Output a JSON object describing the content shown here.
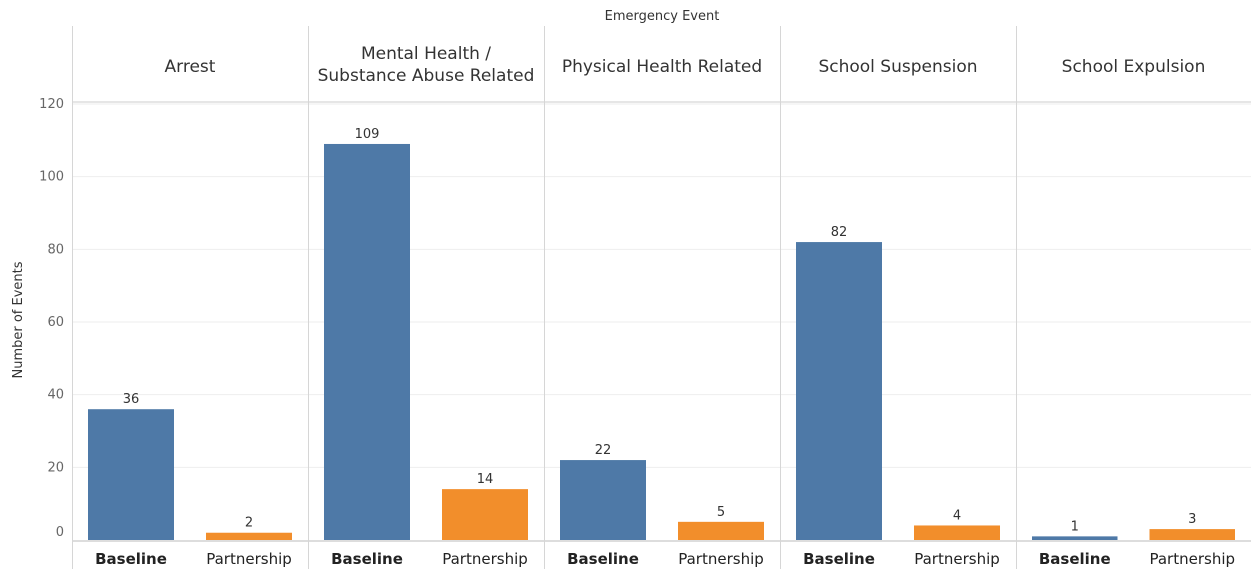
{
  "chart_data": {
    "type": "bar",
    "title": "Emergency Event",
    "ylabel": "Number of Events",
    "ylim": [
      0,
      120
    ],
    "yticks": [
      0,
      20,
      40,
      60,
      80,
      100,
      120
    ],
    "grid": true,
    "categories": [
      "Baseline",
      "Partnership"
    ],
    "panels": [
      {
        "name": "Arrest",
        "values": [
          36,
          2
        ]
      },
      {
        "name": "Mental Health / Substance Abuse Related",
        "values": [
          109,
          14
        ]
      },
      {
        "name": "Physical Health Related",
        "values": [
          22,
          5
        ]
      },
      {
        "name": "School Suspension",
        "values": [
          82,
          4
        ]
      },
      {
        "name": "School Expulsion",
        "values": [
          1,
          3
        ]
      }
    ],
    "colors": {
      "Baseline": "#4e79a7",
      "Partnership": "#f28e2b"
    }
  }
}
